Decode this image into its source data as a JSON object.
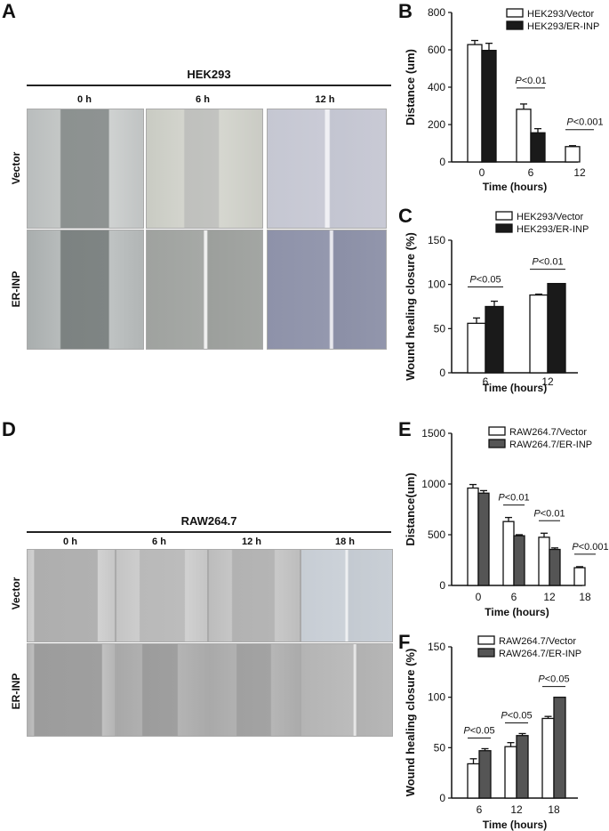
{
  "panels": {
    "A": {
      "letter": "A",
      "cell_line": "HEK293",
      "time_labels": [
        "0 h",
        "6 h",
        "12 h"
      ],
      "row_labels": [
        "Vector",
        "ER-INP"
      ]
    },
    "D": {
      "letter": "D",
      "cell_line": "RAW264.7",
      "time_labels": [
        "0 h",
        "6 h",
        "12 h",
        "18 h"
      ],
      "row_labels": [
        "Vector",
        "ER-INP"
      ]
    }
  },
  "chart_data": [
    {
      "id": "B",
      "letter": "B",
      "type": "bar",
      "categories": [
        "0",
        "6",
        "12"
      ],
      "series": [
        {
          "name": "HEK293/Vector",
          "values": [
            628,
            282,
            82
          ],
          "errors": [
            22,
            28,
            5
          ],
          "fill": "#ffffff"
        },
        {
          "name": "HEK293/ER-INP",
          "values": [
            597,
            156,
            null
          ],
          "errors": [
            38,
            22,
            null
          ],
          "fill": "#1a1a1a"
        }
      ],
      "xlabel": "Time (hours)",
      "ylabel": "Distance (um)",
      "ylim": [
        0,
        800
      ],
      "yticks": [
        0,
        200,
        400,
        600,
        800
      ],
      "annotations": [
        {
          "text": "P<0.01",
          "category": "6"
        },
        {
          "text": "P<0.001",
          "category": "12"
        }
      ],
      "legend": "top-right"
    },
    {
      "id": "C",
      "letter": "C",
      "type": "bar",
      "categories": [
        "6",
        "12"
      ],
      "series": [
        {
          "name": "HEK293/Vector",
          "values": [
            56,
            88
          ],
          "errors": [
            6,
            1
          ],
          "fill": "#ffffff"
        },
        {
          "name": "HEK293/ER-INP",
          "values": [
            75,
            101
          ],
          "errors": [
            6,
            0
          ],
          "fill": "#1a1a1a"
        }
      ],
      "xlabel": "Time (hours)",
      "ylabel": "Wound healing closure (%)",
      "ylim": [
        0,
        150
      ],
      "yticks": [
        0,
        50,
        100,
        150
      ],
      "annotations": [
        {
          "text": "P<0.05",
          "category": "6"
        },
        {
          "text": "P<0.01",
          "category": "12"
        }
      ],
      "legend": "top-left"
    },
    {
      "id": "E",
      "letter": "E",
      "type": "bar",
      "categories": [
        "0",
        "6",
        "12",
        "18"
      ],
      "series": [
        {
          "name": "RAW264.7/Vector",
          "values": [
            960,
            630,
            475,
            175
          ],
          "errors": [
            35,
            40,
            40,
            10
          ],
          "fill": "#ffffff"
        },
        {
          "name": "RAW264.7/ER-INP",
          "values": [
            910,
            490,
            355,
            null
          ],
          "errors": [
            25,
            10,
            15,
            null
          ],
          "fill": "#555555"
        }
      ],
      "xlabel": "Time (hours)",
      "ylabel": "Distance(um)",
      "ylim": [
        0,
        1500
      ],
      "yticks": [
        0,
        500,
        1000,
        1500
      ],
      "annotations": [
        {
          "text": "P<0.01",
          "category": "6"
        },
        {
          "text": "P<0.01",
          "category": "12"
        },
        {
          "text": "P<0.001",
          "category": "18"
        }
      ],
      "legend": "top-right"
    },
    {
      "id": "F",
      "letter": "F",
      "type": "bar",
      "categories": [
        "6",
        "12",
        "18"
      ],
      "series": [
        {
          "name": "RAW264.7/Vector",
          "values": [
            34,
            51,
            79
          ],
          "errors": [
            5,
            4,
            2
          ],
          "fill": "#ffffff"
        },
        {
          "name": "RAW264.7/ER-INP",
          "values": [
            47,
            62,
            100
          ],
          "errors": [
            2,
            2,
            0
          ],
          "fill": "#555555"
        }
      ],
      "xlabel": "Time (hours)",
      "ylabel": "Wound healing closure (%)",
      "ylim": [
        0,
        150
      ],
      "yticks": [
        0,
        50,
        100,
        150
      ],
      "annotations": [
        {
          "text": "P<0.05",
          "category": "6"
        },
        {
          "text": "P<0.05",
          "category": "12"
        },
        {
          "text": "P<0.05",
          "category": "18"
        }
      ],
      "legend": "top-left"
    }
  ]
}
